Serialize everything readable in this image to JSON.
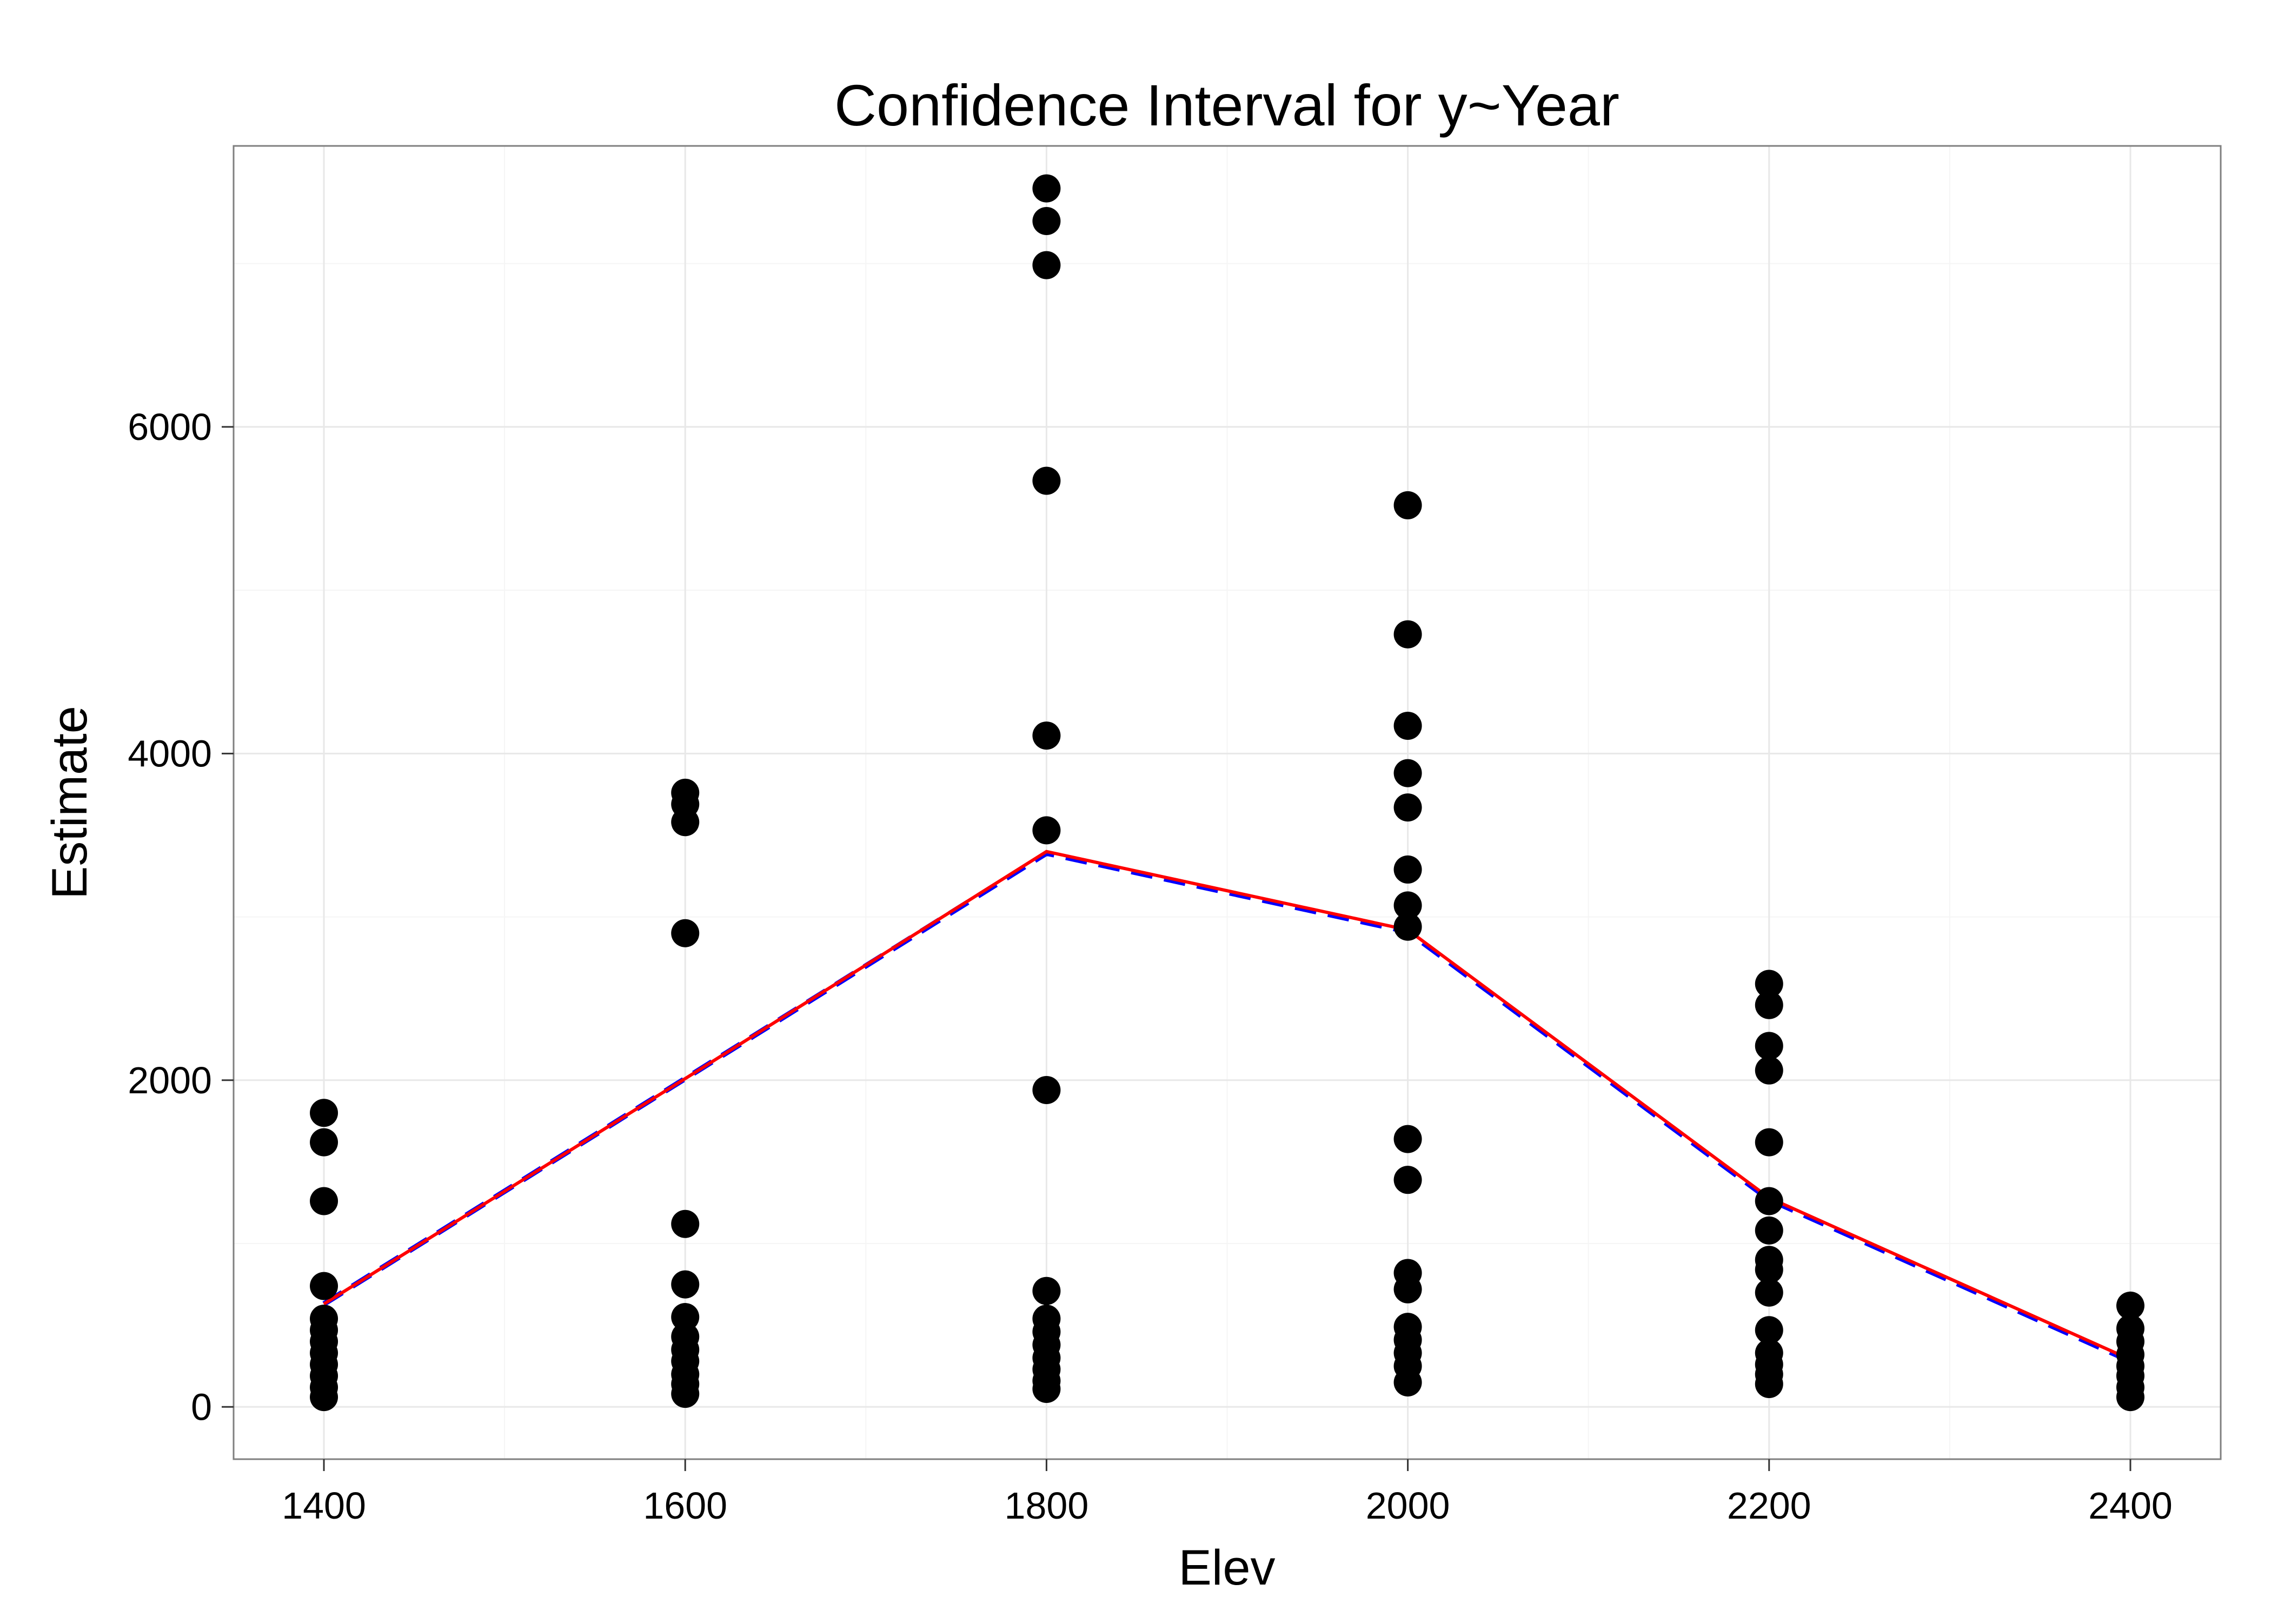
{
  "chart_data": {
    "type": "scatter",
    "title": "Confidence Interval for y~Year",
    "xlabel": "Elev",
    "ylabel": "Estimate",
    "xlim": [
      1350,
      2450
    ],
    "ylim": [
      -320,
      7720
    ],
    "xticks": [
      1400,
      1600,
      1800,
      2000,
      2200,
      2400
    ],
    "yticks": [
      0,
      2000,
      4000,
      6000
    ],
    "grid": true,
    "points": {
      "color": "#000000",
      "data": [
        [
          1400,
          1800
        ],
        [
          1400,
          1620
        ],
        [
          1400,
          1260
        ],
        [
          1400,
          740
        ],
        [
          1400,
          540
        ],
        [
          1400,
          470
        ],
        [
          1400,
          400
        ],
        [
          1400,
          330
        ],
        [
          1400,
          260
        ],
        [
          1400,
          190
        ],
        [
          1400,
          120
        ],
        [
          1400,
          60
        ],
        [
          1600,
          3760
        ],
        [
          1600,
          3690
        ],
        [
          1600,
          3580
        ],
        [
          1600,
          2900
        ],
        [
          1600,
          1120
        ],
        [
          1600,
          750
        ],
        [
          1600,
          550
        ],
        [
          1600,
          430
        ],
        [
          1600,
          350
        ],
        [
          1600,
          280
        ],
        [
          1600,
          200
        ],
        [
          1600,
          140
        ],
        [
          1600,
          80
        ],
        [
          1800,
          7460
        ],
        [
          1800,
          7260
        ],
        [
          1800,
          6990
        ],
        [
          1800,
          5670
        ],
        [
          1800,
          4110
        ],
        [
          1800,
          3530
        ],
        [
          1800,
          1940
        ],
        [
          1800,
          710
        ],
        [
          1800,
          540
        ],
        [
          1800,
          460
        ],
        [
          1800,
          380
        ],
        [
          1800,
          300
        ],
        [
          1800,
          230
        ],
        [
          1800,
          160
        ],
        [
          1800,
          110
        ],
        [
          2000,
          5520
        ],
        [
          2000,
          4730
        ],
        [
          2000,
          4170
        ],
        [
          2000,
          3880
        ],
        [
          2000,
          3670
        ],
        [
          2000,
          3290
        ],
        [
          2000,
          3070
        ],
        [
          2000,
          2940
        ],
        [
          2000,
          1640
        ],
        [
          2000,
          1390
        ],
        [
          2000,
          820
        ],
        [
          2000,
          720
        ],
        [
          2000,
          490
        ],
        [
          2000,
          410
        ],
        [
          2000,
          330
        ],
        [
          2000,
          250
        ],
        [
          2000,
          150
        ],
        [
          2200,
          2590
        ],
        [
          2200,
          2460
        ],
        [
          2200,
          2210
        ],
        [
          2200,
          2060
        ],
        [
          2200,
          1620
        ],
        [
          2200,
          1260
        ],
        [
          2200,
          1080
        ],
        [
          2200,
          900
        ],
        [
          2200,
          840
        ],
        [
          2200,
          700
        ],
        [
          2200,
          470
        ],
        [
          2200,
          330
        ],
        [
          2200,
          260
        ],
        [
          2200,
          200
        ],
        [
          2200,
          140
        ],
        [
          2400,
          620
        ],
        [
          2400,
          480
        ],
        [
          2400,
          400
        ],
        [
          2400,
          320
        ],
        [
          2400,
          250
        ],
        [
          2400,
          190
        ],
        [
          2400,
          120
        ],
        [
          2400,
          60
        ]
      ]
    },
    "series": [
      {
        "color": "#ff0000",
        "style": "solid",
        "x": [
          1400,
          1600,
          1800,
          2000,
          2200,
          2400
        ],
        "y": [
          630,
          2010,
          3400,
          2920,
          1280,
          290
        ]
      },
      {
        "color": "#0000ff",
        "style": "dashed",
        "x": [
          1400,
          1600,
          1800,
          2000,
          2200,
          2400
        ],
        "y": [
          630,
          2010,
          3390,
          2910,
          1270,
          280
        ]
      }
    ]
  }
}
